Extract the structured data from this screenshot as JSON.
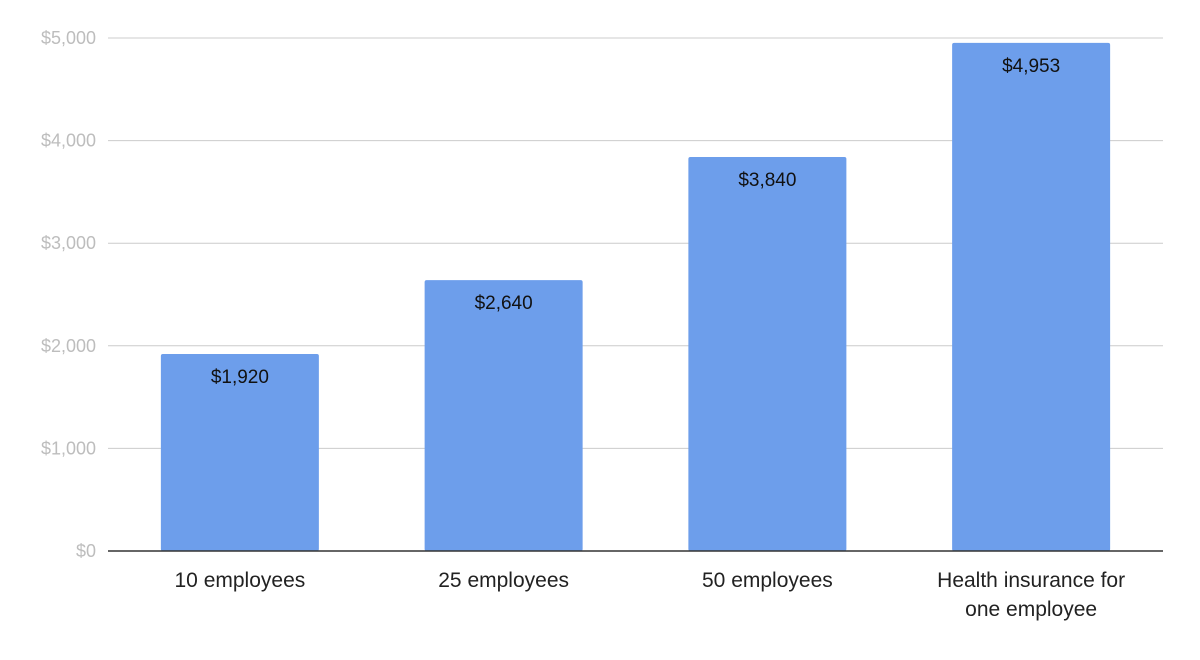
{
  "chart_data": {
    "type": "bar",
    "title": "",
    "xlabel": "",
    "ylabel": "",
    "categories": [
      [
        "10 employees"
      ],
      [
        "25 employees"
      ],
      [
        "50 employees"
      ],
      [
        "Health insurance for",
        "one employee"
      ]
    ],
    "values": [
      1920,
      2640,
      3840,
      4953
    ],
    "data_labels": [
      "$1,920",
      "$2,640",
      "$3,840",
      "$4,953"
    ],
    "ylim": [
      0,
      5000
    ],
    "yticks": [
      0,
      1000,
      2000,
      3000,
      4000,
      5000
    ],
    "ytick_labels": [
      "$0",
      "$1,000",
      "$2,000",
      "$3,000",
      "$4,000",
      "$5,000"
    ],
    "grid": true,
    "legend": "none",
    "colors": {
      "bar": "#6d9eeb",
      "grid": "#cccccc",
      "axis": "#333333",
      "ytick": "#bdbdbd",
      "xtick": "#222222",
      "data_label": "#111111"
    }
  }
}
